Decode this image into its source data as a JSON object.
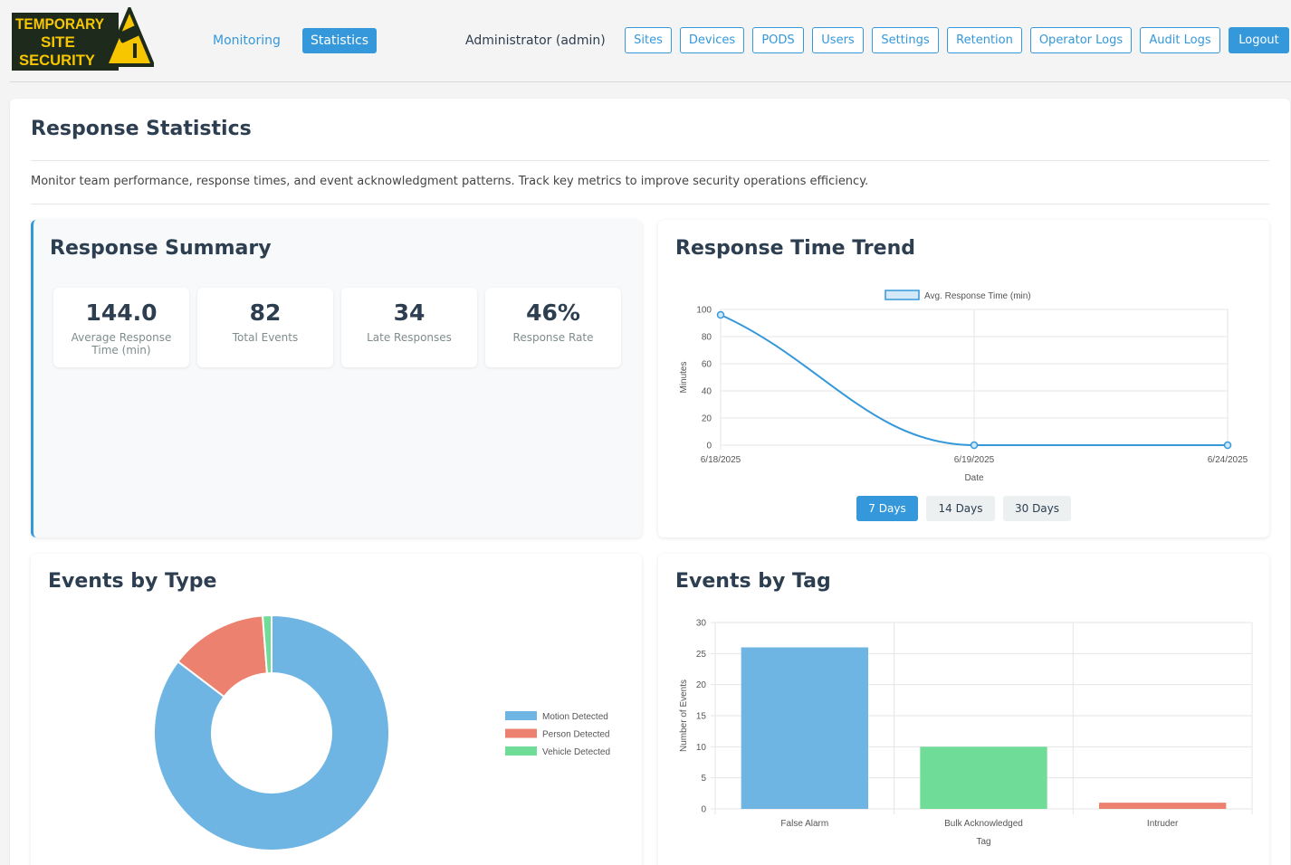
{
  "header": {
    "logo_text": [
      "TEMPORARY",
      "SITE",
      "SECURITY"
    ],
    "nav": [
      {
        "label": "Monitoring",
        "active": false
      },
      {
        "label": "Statistics",
        "active": true
      }
    ],
    "user_label": "Administrator (admin)",
    "buttons": [
      "Sites",
      "Devices",
      "PODS",
      "Users",
      "Settings",
      "Retention",
      "Operator Logs",
      "Audit Logs"
    ],
    "logout_label": "Logout"
  },
  "page": {
    "title": "Response Statistics",
    "description": "Monitor team performance, response times, and event acknowledgment patterns. Track key metrics to improve security operations efficiency."
  },
  "summary": {
    "title": "Response Summary",
    "stats": [
      {
        "value": "144.0",
        "label": "Average Response Time (min)"
      },
      {
        "value": "82",
        "label": "Total Events"
      },
      {
        "value": "34",
        "label": "Late Responses"
      },
      {
        "value": "46%",
        "label": "Response Rate"
      }
    ]
  },
  "trend": {
    "title": "Response Time Trend",
    "range_buttons": [
      {
        "label": "7 Days",
        "active": true
      },
      {
        "label": "14 Days",
        "active": false
      },
      {
        "label": "30 Days",
        "active": false
      }
    ]
  },
  "events_by_type": {
    "title": "Events by Type"
  },
  "events_by_tag": {
    "title": "Events by Tag"
  },
  "colors": {
    "accent": "#3498db",
    "blue": "#6fb5e4",
    "red": "#ec8170",
    "green": "#6fdc98",
    "logo_yellow": "#f7c600",
    "logo_dark": "#1d2a1c"
  },
  "chart_data": [
    {
      "type": "line",
      "legend": [
        "Avg. Response Time (min)"
      ],
      "x": [
        "6/18/2025",
        "6/19/2025",
        "6/24/2025"
      ],
      "series": [
        {
          "name": "Avg. Response Time (min)",
          "values": [
            96,
            0,
            0
          ]
        }
      ],
      "xlabel": "Date",
      "ylabel": "Minutes",
      "ylim": [
        0,
        100
      ],
      "yticks": [
        0,
        20,
        40,
        60,
        80,
        100
      ],
      "grid": true,
      "legend_position": "top"
    },
    {
      "type": "pie",
      "donut": true,
      "categories": [
        "Motion Detected",
        "Person Detected",
        "Vehicle Detected"
      ],
      "values": [
        70,
        11,
        1
      ],
      "legend_position": "right"
    },
    {
      "type": "bar",
      "categories": [
        "False Alarm",
        "Bulk Acknowledged",
        "Intruder"
      ],
      "values": [
        26,
        10,
        1
      ],
      "xlabel": "Tag",
      "ylabel": "Number of Events",
      "ylim": [
        0,
        30
      ],
      "yticks": [
        0,
        5,
        10,
        15,
        20,
        25,
        30
      ],
      "grid": true
    }
  ]
}
